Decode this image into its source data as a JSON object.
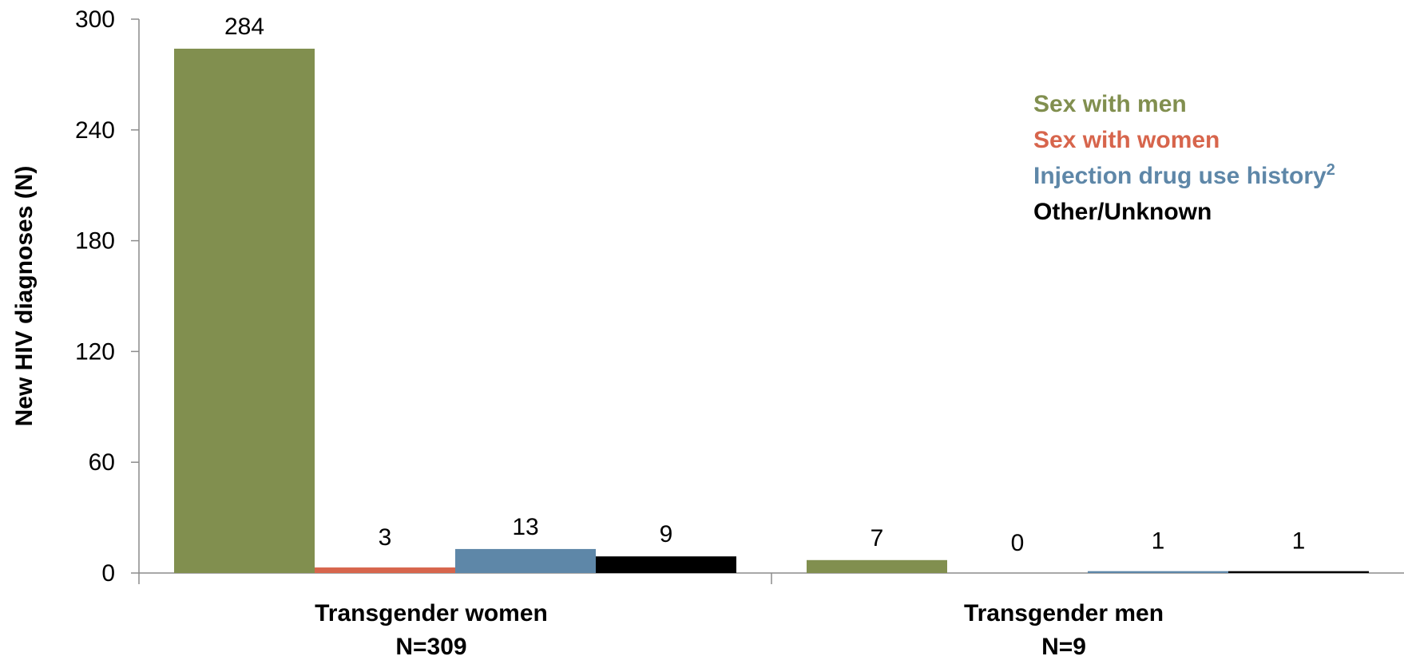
{
  "chart_data": {
    "type": "bar",
    "categories": [
      "Transgender women",
      "Transgender men"
    ],
    "category_counts": [
      "N=309",
      "N=9"
    ],
    "ylabel": "New HIV diagnoses (N)",
    "xlabel": "",
    "ylim": [
      0,
      300
    ],
    "yticks": [
      0,
      60,
      120,
      180,
      240,
      300
    ],
    "legend_position": "top-right",
    "grid": false,
    "series": [
      {
        "name": "Sex with men",
        "values": [
          284,
          7
        ],
        "color": "#818f4f"
      },
      {
        "name": "Sex with women",
        "values": [
          3,
          0
        ],
        "color": "#d7654c"
      },
      {
        "name": "Injection drug use history",
        "superscript": "2",
        "values": [
          13,
          1
        ],
        "color": "#5e87a8"
      },
      {
        "name": "Other/Unknown",
        "values": [
          9,
          1
        ],
        "color": "#000000"
      }
    ]
  }
}
